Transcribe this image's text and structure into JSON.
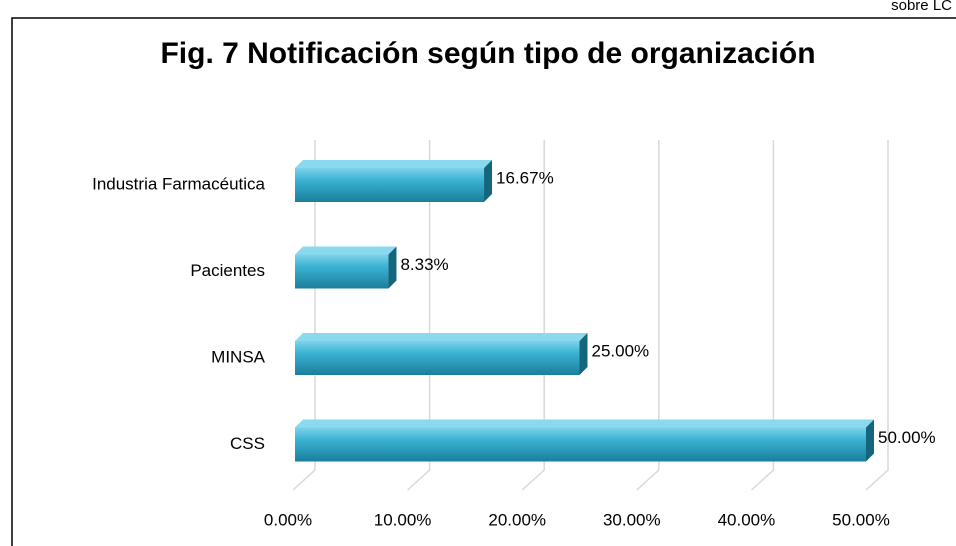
{
  "corner_text": "sobre LC",
  "chart_data": {
    "type": "bar",
    "orientation": "horizontal",
    "title": "Fig. 7 Notificación según tipo de organización",
    "categories": [
      "Industria Farmacéutica",
      "Pacientes",
      "MINSA",
      "CSS"
    ],
    "values": [
      16.67,
      8.33,
      25.0,
      50.0
    ],
    "value_labels": [
      "16.67%",
      "8.33%",
      "25.00%",
      "50.00%"
    ],
    "color": "#2aa3c4",
    "xlim": [
      0,
      50
    ],
    "xticks": [
      {
        "value": 0,
        "label": "0.00%"
      },
      {
        "value": 10,
        "label": "10.00%"
      },
      {
        "value": 20,
        "label": "20.00%"
      },
      {
        "value": 30,
        "label": "30.00%"
      },
      {
        "value": 40,
        "label": "40.00%"
      },
      {
        "value": 50,
        "label": "50.00%"
      }
    ],
    "grid": true
  }
}
